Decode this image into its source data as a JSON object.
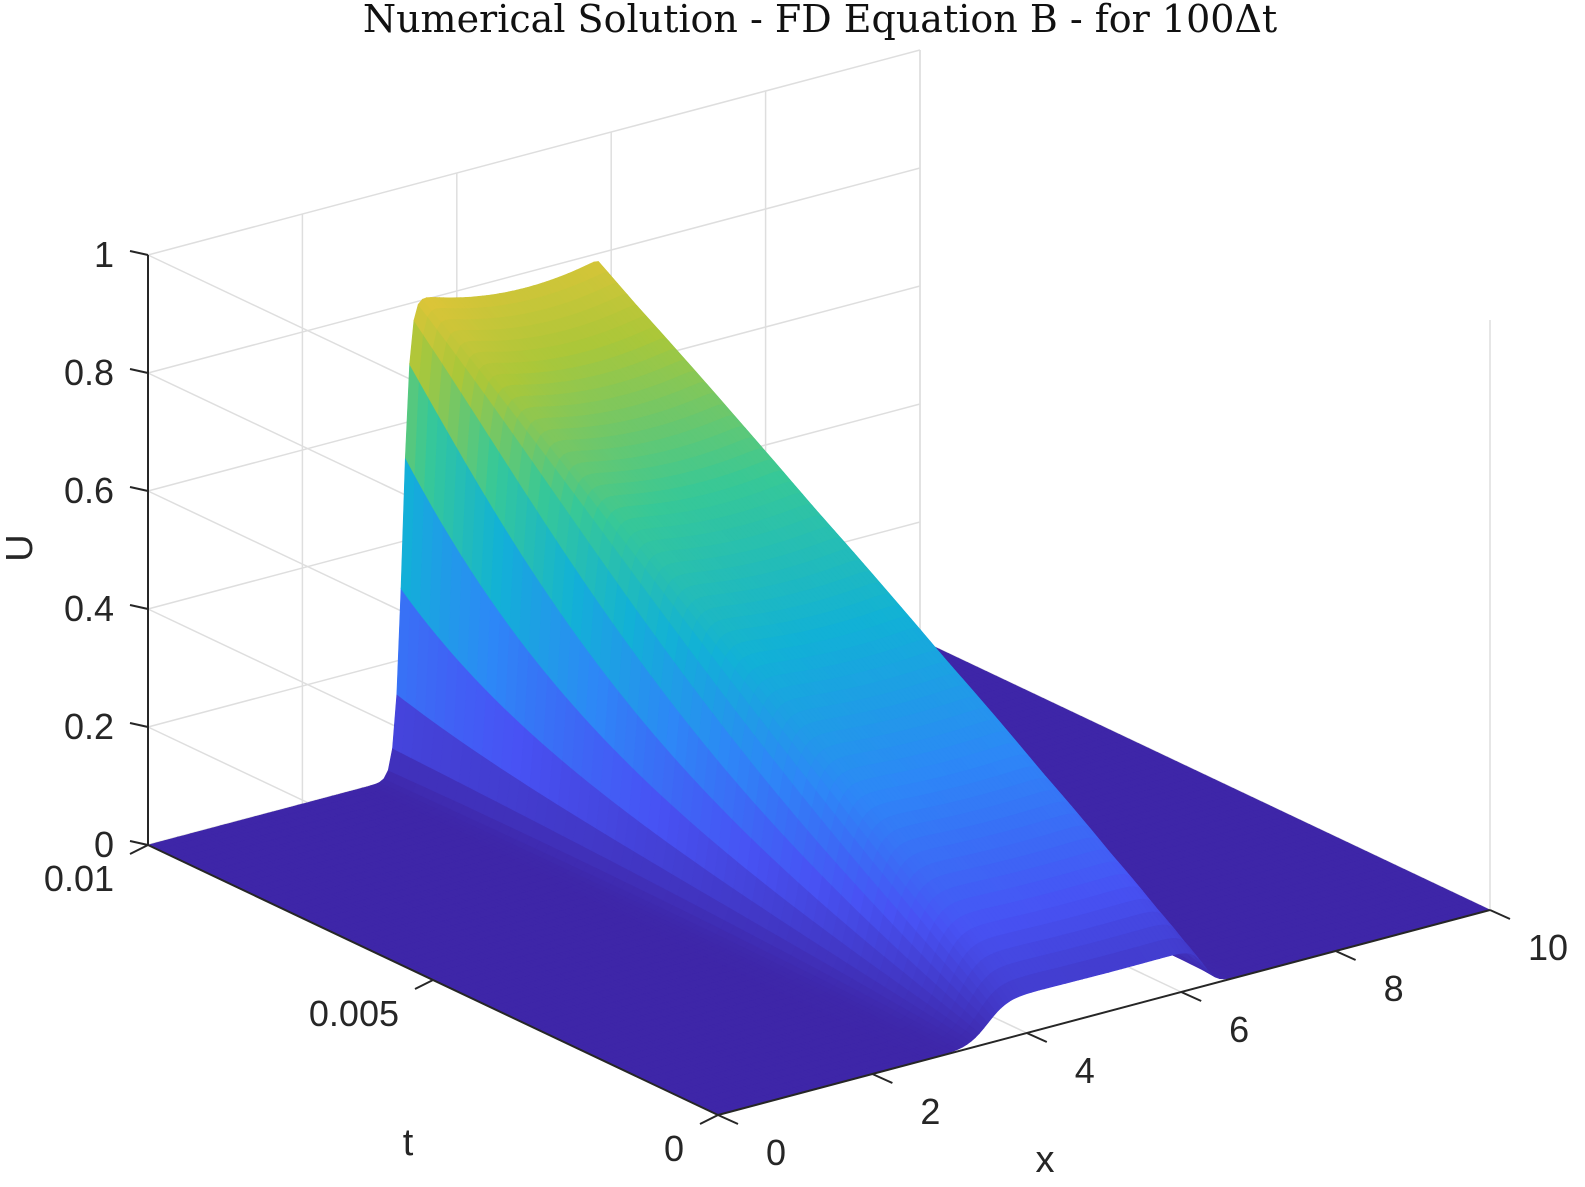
{
  "chart_data": {
    "type": "surface",
    "title": "Numerical Solution - FD Equation B - for 100Δt",
    "xlabel": "x",
    "ylabel": "t",
    "zlabel": "U",
    "xlim": [
      0,
      10
    ],
    "ylim": [
      0,
      0.01
    ],
    "zlim": [
      0,
      1
    ],
    "xticks": [
      0,
      2,
      4,
      6,
      8,
      10
    ],
    "xtick_labels": [
      "0",
      "2",
      "4",
      "6",
      "8",
      "10"
    ],
    "yticks": [
      0,
      0.005,
      0.01
    ],
    "ytick_labels": [
      "0",
      "0.005",
      "0.01"
    ],
    "zticks": [
      0,
      0.2,
      0.4,
      0.6,
      0.8,
      1
    ],
    "ztick_labels": [
      "0",
      "0.2",
      "0.4",
      "0.6",
      "0.8",
      "1"
    ],
    "grid": true,
    "colormap": "parula",
    "surface": {
      "description_rows_t": [
        0,
        0.01
      ],
      "profile_x": [
        3.0,
        3.2,
        3.35,
        3.5,
        3.7,
        4.0,
        4.5,
        5.0,
        5.5,
        5.9,
        6.0,
        6.05,
        6.1,
        6.2,
        6.4,
        7.0
      ],
      "profile_U_at_t_max": [
        0.0,
        0.02,
        0.15,
        0.55,
        0.83,
        0.82,
        0.8,
        0.79,
        0.8,
        0.82,
        0.8,
        0.5,
        0.15,
        0.03,
        0.0,
        0.0
      ],
      "front_left_x_at_t0": 3.5,
      "front_right_x_at_t0": 6.3,
      "peak_U_left_edge": 0.82,
      "peak_U_right_edge": 0.8
    }
  }
}
